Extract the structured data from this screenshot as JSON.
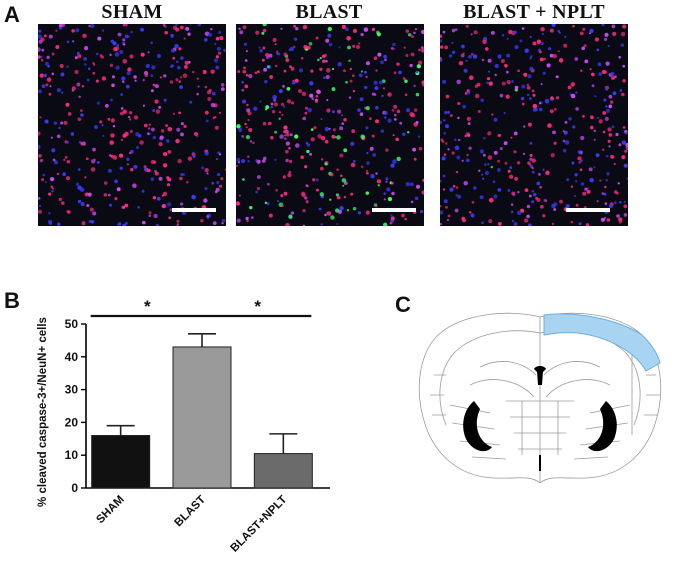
{
  "panel_a": {
    "letter": "A",
    "images": [
      {
        "title": "SHAM",
        "cell_density": 420,
        "green_fraction": 0.0
      },
      {
        "title": "BLAST",
        "cell_density": 420,
        "green_fraction": 0.16
      },
      {
        "title": "BLAST + NPLT",
        "cell_density": 420,
        "green_fraction": 0.01
      }
    ]
  },
  "panel_b": {
    "letter": "B"
  },
  "panel_c": {
    "letter": "C"
  },
  "colors": {
    "sham_bar": "#111111",
    "blast_bar": "#9a9a9a",
    "nplt_bar": "#6b6b6b",
    "highlight_region": "#a8d4f2",
    "nucleus_blue": "#3a3aff",
    "neun_red": "#ff2a7a",
    "caspase_green": "#3cff6a"
  },
  "chart_data": {
    "type": "bar",
    "categories": [
      "SHAM",
      "BLAST",
      "BLAST+NPLT"
    ],
    "values": [
      16,
      43,
      10.5
    ],
    "errors": [
      3,
      4,
      6
    ],
    "ylabel": "% cleaved caspase-3+/NeuN+ cells",
    "xlabel": "",
    "ylim": [
      0,
      50
    ],
    "yticks": [
      0,
      10,
      20,
      30,
      40,
      50
    ],
    "significance": [
      {
        "from": 0,
        "to": 1,
        "label": "*"
      },
      {
        "from": 1,
        "to": 2,
        "label": "*"
      }
    ],
    "grid": false
  }
}
